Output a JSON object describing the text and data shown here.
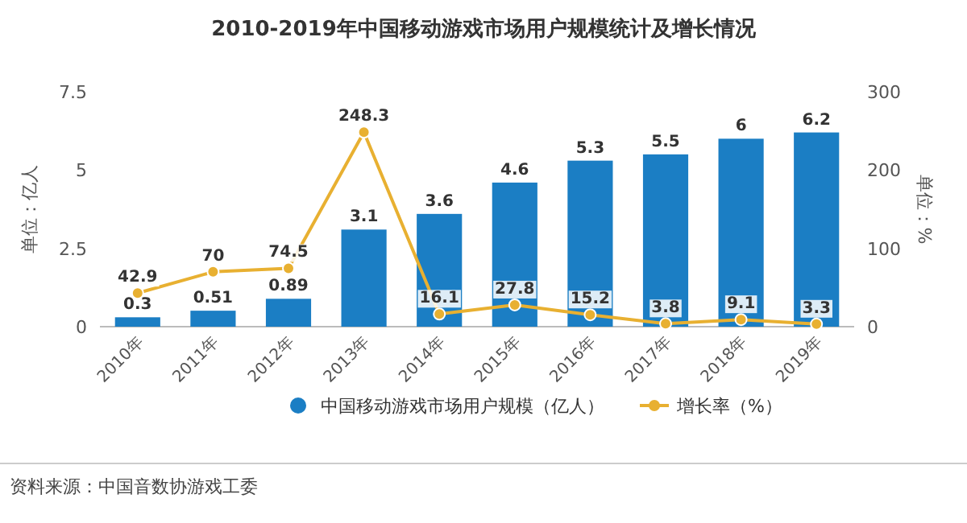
{
  "chart_data": {
    "type": "bar",
    "title": "2010-2019年中国移动游戏市场用户规模统计及增长情况",
    "categories": [
      "2010年",
      "2011年",
      "2012年",
      "2013年",
      "2014年",
      "2015年",
      "2016年",
      "2017年",
      "2018年",
      "2019年"
    ],
    "series": [
      {
        "name": "中国移动游戏市场用户规模（亿人）",
        "color": "#1b7ec4",
        "values": [
          0.3,
          0.51,
          0.89,
          3.1,
          3.6,
          4.6,
          5.3,
          5.5,
          6,
          6.2
        ]
      },
      {
        "name": "增长率（%）",
        "type": "line",
        "axis": "y2",
        "color": "#e8b031",
        "marker": "circle",
        "values": [
          42.9,
          70,
          74.5,
          248.3,
          16.1,
          27.8,
          15.2,
          3.8,
          9.1,
          3.3
        ]
      }
    ],
    "ylabel": "单位：亿人",
    "y2label": "单位：%",
    "ylim": [
      0,
      7.5
    ],
    "yticks": [
      0,
      2.5,
      5,
      7.5
    ],
    "y2lim": [
      0,
      300
    ],
    "y2ticks": [
      0,
      100,
      200,
      300
    ],
    "data_labels": true,
    "legend": "bottom",
    "grid": false,
    "annotations": [
      "资料来源：中国音数协游戏工委"
    ]
  }
}
